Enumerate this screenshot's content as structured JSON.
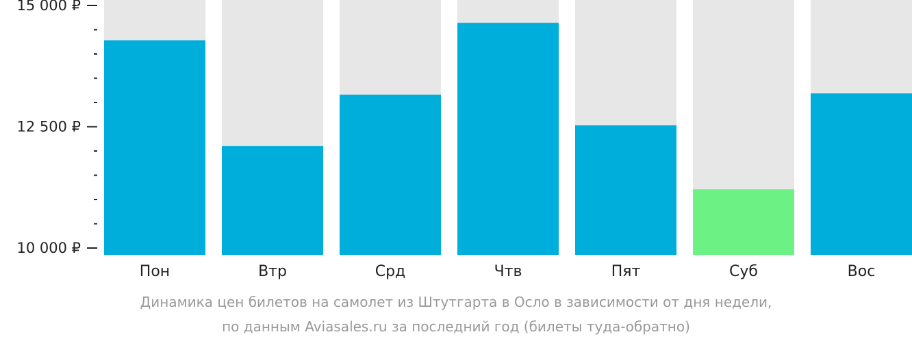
{
  "chart_data": {
    "type": "bar",
    "categories": [
      "Пон",
      "Втр",
      "Срд",
      "Чтв",
      "Пят",
      "Суб",
      "Вос"
    ],
    "values": [
      14280,
      12100,
      13160,
      14640,
      12530,
      11210,
      13190
    ],
    "ylim": [
      10000,
      15000
    ],
    "yticks": [
      10000,
      12500,
      15000
    ],
    "ytick_labels": [
      "10 000 ₽",
      "12 500 ₽",
      "15 000 ₽"
    ],
    "minor_tick_step": 500,
    "highlight_index": 5,
    "colors": {
      "bar": "#00AEDC",
      "highlight": "#6CF184",
      "track": "#E7E7E7",
      "axis": "#222222"
    },
    "caption_line1": "Динамика цен билетов на самолет из Штутгарта в Осло в зависимости от дня недели,",
    "caption_line2": "по данным Aviasales.ru за последний год (билеты туда-обратно)"
  }
}
